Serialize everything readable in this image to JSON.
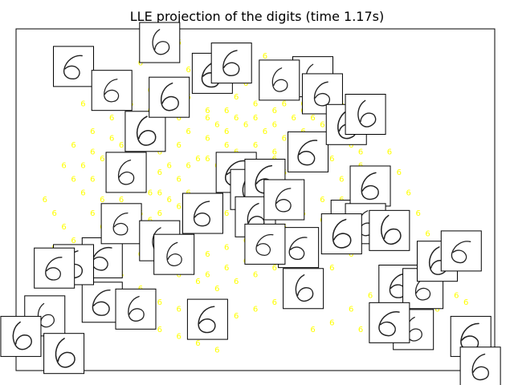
{
  "chart_data": {
    "type": "scatter",
    "title": "LLE projection of the digits (time 1.17s)",
    "xlabel": "",
    "ylabel": "",
    "axes_visible": false,
    "xlim": [
      0,
      1
    ],
    "ylim": [
      0,
      1
    ],
    "marker": "digit glyph '6'",
    "point_color": "#ffff00",
    "thumbnail_style": "framed digit image (black strokes on white)",
    "points_label": "6",
    "points": [
      [
        0.38,
        0.45
      ],
      [
        0.42,
        0.48
      ],
      [
        0.44,
        0.55
      ],
      [
        0.36,
        0.6
      ],
      [
        0.4,
        0.62
      ],
      [
        0.46,
        0.64
      ],
      [
        0.5,
        0.66
      ],
      [
        0.52,
        0.7
      ],
      [
        0.48,
        0.72
      ],
      [
        0.44,
        0.7
      ],
      [
        0.4,
        0.68
      ],
      [
        0.34,
        0.66
      ],
      [
        0.3,
        0.58
      ],
      [
        0.28,
        0.52
      ],
      [
        0.32,
        0.5
      ],
      [
        0.36,
        0.52
      ],
      [
        0.54,
        0.62
      ],
      [
        0.56,
        0.58
      ],
      [
        0.58,
        0.54
      ],
      [
        0.6,
        0.6
      ],
      [
        0.62,
        0.64
      ],
      [
        0.64,
        0.68
      ],
      [
        0.58,
        0.74
      ],
      [
        0.54,
        0.76
      ],
      [
        0.5,
        0.78
      ],
      [
        0.46,
        0.8
      ],
      [
        0.42,
        0.82
      ],
      [
        0.38,
        0.84
      ],
      [
        0.4,
        0.76
      ],
      [
        0.44,
        0.76
      ],
      [
        0.48,
        0.84
      ],
      [
        0.52,
        0.86
      ],
      [
        0.56,
        0.82
      ],
      [
        0.6,
        0.78
      ],
      [
        0.66,
        0.72
      ],
      [
        0.7,
        0.66
      ],
      [
        0.72,
        0.6
      ],
      [
        0.68,
        0.56
      ],
      [
        0.64,
        0.5
      ],
      [
        0.6,
        0.46
      ],
      [
        0.56,
        0.42
      ],
      [
        0.52,
        0.4
      ],
      [
        0.48,
        0.38
      ],
      [
        0.44,
        0.36
      ],
      [
        0.4,
        0.34
      ],
      [
        0.36,
        0.36
      ],
      [
        0.32,
        0.4
      ],
      [
        0.28,
        0.44
      ],
      [
        0.24,
        0.48
      ],
      [
        0.22,
        0.54
      ],
      [
        0.2,
        0.58
      ],
      [
        0.18,
        0.62
      ],
      [
        0.22,
        0.66
      ],
      [
        0.26,
        0.7
      ],
      [
        0.3,
        0.72
      ],
      [
        0.34,
        0.74
      ],
      [
        0.32,
        0.8
      ],
      [
        0.36,
        0.88
      ],
      [
        0.4,
        0.9
      ],
      [
        0.44,
        0.92
      ],
      [
        0.48,
        0.94
      ],
      [
        0.52,
        0.92
      ],
      [
        0.56,
        0.9
      ],
      [
        0.6,
        0.86
      ],
      [
        0.64,
        0.82
      ],
      [
        0.68,
        0.78
      ],
      [
        0.72,
        0.74
      ],
      [
        0.76,
        0.7
      ],
      [
        0.78,
        0.64
      ],
      [
        0.8,
        0.58
      ],
      [
        0.76,
        0.54
      ],
      [
        0.74,
        0.48
      ],
      [
        0.7,
        0.44
      ],
      [
        0.66,
        0.4
      ],
      [
        0.62,
        0.36
      ],
      [
        0.58,
        0.32
      ],
      [
        0.54,
        0.3
      ],
      [
        0.5,
        0.28
      ],
      [
        0.46,
        0.26
      ],
      [
        0.42,
        0.24
      ],
      [
        0.38,
        0.26
      ],
      [
        0.34,
        0.28
      ],
      [
        0.3,
        0.3
      ],
      [
        0.26,
        0.34
      ],
      [
        0.22,
        0.38
      ],
      [
        0.18,
        0.42
      ],
      [
        0.16,
        0.46
      ],
      [
        0.14,
        0.52
      ],
      [
        0.12,
        0.56
      ],
      [
        0.1,
        0.6
      ],
      [
        0.12,
        0.66
      ],
      [
        0.16,
        0.7
      ],
      [
        0.2,
        0.74
      ],
      [
        0.24,
        0.78
      ],
      [
        0.28,
        0.82
      ],
      [
        0.82,
        0.52
      ],
      [
        0.84,
        0.46
      ],
      [
        0.86,
        0.4
      ],
      [
        0.88,
        0.34
      ],
      [
        0.84,
        0.3
      ],
      [
        0.8,
        0.36
      ],
      [
        0.78,
        0.42
      ],
      [
        0.74,
        0.38
      ],
      [
        0.7,
        0.34
      ],
      [
        0.66,
        0.3
      ],
      [
        0.62,
        0.26
      ],
      [
        0.58,
        0.22
      ],
      [
        0.54,
        0.2
      ],
      [
        0.5,
        0.18
      ],
      [
        0.46,
        0.16
      ],
      [
        0.42,
        0.14
      ],
      [
        0.38,
        0.16
      ],
      [
        0.34,
        0.18
      ],
      [
        0.3,
        0.2
      ],
      [
        0.26,
        0.24
      ],
      [
        0.22,
        0.28
      ],
      [
        0.18,
        0.3
      ],
      [
        0.14,
        0.34
      ],
      [
        0.12,
        0.38
      ],
      [
        0.1,
        0.42
      ],
      [
        0.08,
        0.46
      ],
      [
        0.06,
        0.5
      ],
      [
        0.08,
        0.36
      ],
      [
        0.1,
        0.3
      ],
      [
        0.14,
        0.26
      ],
      [
        0.18,
        0.22
      ],
      [
        0.22,
        0.18
      ],
      [
        0.26,
        0.14
      ],
      [
        0.3,
        0.12
      ],
      [
        0.34,
        0.1
      ],
      [
        0.38,
        0.08
      ],
      [
        0.42,
        0.06
      ],
      [
        0.9,
        0.28
      ],
      [
        0.92,
        0.22
      ],
      [
        0.88,
        0.18
      ],
      [
        0.84,
        0.14
      ],
      [
        0.8,
        0.1
      ],
      [
        0.86,
        0.1
      ],
      [
        0.92,
        0.14
      ],
      [
        0.94,
        0.2
      ],
      [
        0.7,
        0.18
      ],
      [
        0.66,
        0.14
      ],
      [
        0.62,
        0.12
      ],
      [
        0.74,
        0.22
      ],
      [
        0.78,
        0.26
      ],
      [
        0.82,
        0.22
      ],
      [
        0.76,
        0.16
      ],
      [
        0.72,
        0.12
      ],
      [
        0.3,
        0.94
      ],
      [
        0.34,
        0.96
      ],
      [
        0.26,
        0.9
      ],
      [
        0.22,
        0.86
      ],
      [
        0.18,
        0.82
      ],
      [
        0.14,
        0.78
      ],
      [
        0.46,
        0.58
      ],
      [
        0.42,
        0.6
      ],
      [
        0.38,
        0.62
      ],
      [
        0.5,
        0.6
      ],
      [
        0.52,
        0.54
      ],
      [
        0.48,
        0.5
      ],
      [
        0.44,
        0.46
      ],
      [
        0.4,
        0.42
      ],
      [
        0.36,
        0.44
      ],
      [
        0.34,
        0.56
      ],
      [
        0.3,
        0.64
      ],
      [
        0.26,
        0.62
      ],
      [
        0.24,
        0.58
      ],
      [
        0.56,
        0.68
      ],
      [
        0.6,
        0.7
      ],
      [
        0.62,
        0.74
      ],
      [
        0.66,
        0.62
      ],
      [
        0.68,
        0.5
      ],
      [
        0.64,
        0.44
      ],
      [
        0.6,
        0.4
      ],
      [
        0.56,
        0.36
      ],
      [
        0.52,
        0.34
      ],
      [
        0.48,
        0.32
      ],
      [
        0.44,
        0.3
      ],
      [
        0.4,
        0.28
      ],
      [
        0.36,
        0.3
      ],
      [
        0.32,
        0.34
      ],
      [
        0.28,
        0.38
      ],
      [
        0.24,
        0.42
      ],
      [
        0.2,
        0.46
      ],
      [
        0.18,
        0.5
      ],
      [
        0.16,
        0.56
      ],
      [
        0.14,
        0.6
      ],
      [
        0.16,
        0.64
      ],
      [
        0.2,
        0.68
      ],
      [
        0.24,
        0.72
      ],
      [
        0.28,
        0.76
      ],
      [
        0.32,
        0.78
      ],
      [
        0.36,
        0.8
      ],
      [
        0.4,
        0.86
      ],
      [
        0.44,
        0.86
      ],
      [
        0.48,
        0.88
      ],
      [
        0.52,
        0.82
      ],
      [
        0.56,
        0.78
      ],
      [
        0.6,
        0.76
      ],
      [
        0.64,
        0.72
      ],
      [
        0.68,
        0.68
      ],
      [
        0.72,
        0.64
      ],
      [
        0.74,
        0.58
      ],
      [
        0.72,
        0.52
      ],
      [
        0.7,
        0.48
      ],
      [
        0.06,
        0.18
      ],
      [
        0.08,
        0.08
      ],
      [
        0.1,
        0.04
      ],
      [
        0.3,
        0.52
      ],
      [
        0.32,
        0.6
      ],
      [
        0.36,
        0.7
      ],
      [
        0.42,
        0.72
      ],
      [
        0.46,
        0.74
      ],
      [
        0.5,
        0.74
      ],
      [
        0.54,
        0.72
      ],
      [
        0.58,
        0.66
      ],
      [
        0.54,
        0.64
      ],
      [
        0.5,
        0.56
      ],
      [
        0.46,
        0.52
      ],
      [
        0.42,
        0.5
      ],
      [
        0.38,
        0.48
      ],
      [
        0.34,
        0.48
      ],
      [
        0.3,
        0.46
      ],
      [
        0.26,
        0.46
      ],
      [
        0.22,
        0.5
      ],
      [
        0.4,
        0.74
      ],
      [
        0.44,
        0.66
      ],
      [
        0.48,
        0.62
      ],
      [
        0.52,
        0.58
      ]
    ],
    "thumbnails": [
      [
        0.06,
        0.16
      ],
      [
        0.18,
        0.2
      ],
      [
        0.23,
        0.58
      ],
      [
        0.27,
        0.7
      ],
      [
        0.18,
        0.33
      ],
      [
        0.22,
        0.43
      ],
      [
        0.12,
        0.31
      ],
      [
        0.3,
        0.38
      ],
      [
        0.46,
        0.58
      ],
      [
        0.39,
        0.46
      ],
      [
        0.33,
        0.34
      ],
      [
        0.49,
        0.53
      ],
      [
        0.59,
        0.36
      ],
      [
        0.52,
        0.56
      ],
      [
        0.5,
        0.45
      ],
      [
        0.62,
        0.86
      ],
      [
        0.61,
        0.64
      ],
      [
        0.64,
        0.81
      ],
      [
        0.69,
        0.72
      ],
      [
        0.73,
        0.75
      ],
      [
        0.7,
        0.44
      ],
      [
        0.74,
        0.54
      ],
      [
        0.73,
        0.43
      ],
      [
        0.78,
        0.41
      ],
      [
        0.8,
        0.25
      ],
      [
        0.85,
        0.24
      ],
      [
        0.88,
        0.32
      ],
      [
        0.93,
        0.35
      ],
      [
        0.95,
        0.1
      ],
      [
        0.97,
        0.01
      ],
      [
        0.83,
        0.12
      ],
      [
        0.78,
        0.14
      ],
      [
        0.56,
        0.5
      ],
      [
        0.68,
        0.4
      ],
      [
        0.6,
        0.24
      ],
      [
        0.52,
        0.37
      ],
      [
        0.4,
        0.15
      ],
      [
        0.25,
        0.18
      ],
      [
        0.1,
        0.05
      ],
      [
        0.12,
        0.89
      ],
      [
        0.2,
        0.82
      ],
      [
        0.32,
        0.8
      ],
      [
        0.3,
        0.96
      ],
      [
        0.41,
        0.87
      ],
      [
        0.45,
        0.9
      ],
      [
        0.55,
        0.85
      ],
      [
        0.01,
        0.1
      ],
      [
        0.08,
        0.3
      ]
    ]
  }
}
